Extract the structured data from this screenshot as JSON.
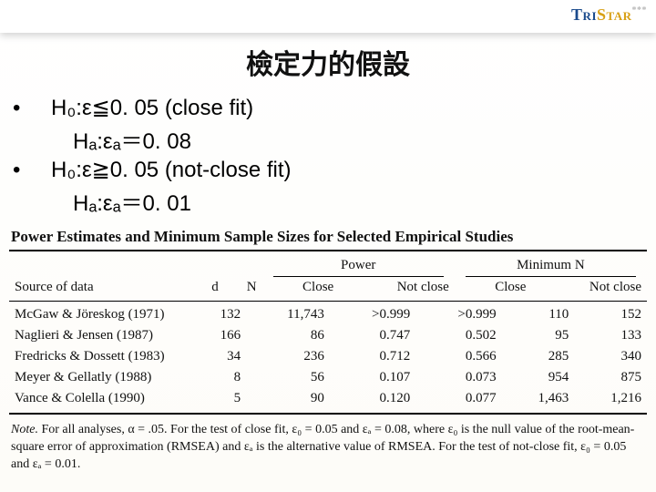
{
  "brand": {
    "part1": "Tri",
    "part2": "Star",
    "part3": "***"
  },
  "title": "檢定力的假設",
  "hypotheses": {
    "line1": "H₀:ε≦0. 05 (close fit)",
    "line2": "Hₐ:εₐ＝0. 08",
    "line3": "H₀:ε≧0. 05 (not-close fit)",
    "line4": "Hₐ:εₐ＝0. 01"
  },
  "table": {
    "title": "Power Estimates and Minimum Sample Sizes for Selected Empirical Studies",
    "group_headers": {
      "power": "Power",
      "minn": "Minimum N"
    },
    "headers": {
      "source": "Source of data",
      "d": "d",
      "n": "N",
      "close": "Close",
      "notclose": "Not close"
    },
    "rows": [
      {
        "source": "McGaw & Jöreskog (1971)",
        "d": "132",
        "n": "11,743",
        "p_close": ">0.999",
        "p_not": ">0.999",
        "m_close": "110",
        "m_not": "152"
      },
      {
        "source": "Naglieri & Jensen (1987)",
        "d": "166",
        "n": "86",
        "p_close": "0.747",
        "p_not": "0.502",
        "m_close": "95",
        "m_not": "133"
      },
      {
        "source": "Fredricks & Dossett (1983)",
        "d": "34",
        "n": "236",
        "p_close": "0.712",
        "p_not": "0.566",
        "m_close": "285",
        "m_not": "340"
      },
      {
        "source": "Meyer & Gellatly (1988)",
        "d": "8",
        "n": "56",
        "p_close": "0.107",
        "p_not": "0.073",
        "m_close": "954",
        "m_not": "875"
      },
      {
        "source": "Vance & Colella (1990)",
        "d": "5",
        "n": "90",
        "p_close": "0.120",
        "p_not": "0.077",
        "m_close": "1,463",
        "m_not": "1,216"
      }
    ],
    "note_label": "Note.",
    "note_body": "For all analyses, α = .05. For the test of close fit, ε₀ = 0.05 and εₐ = 0.08, where ε₀ is the null value of the root-mean-square error of approximation (RMSEA) and εₐ is the alternative value of RMSEA. For the test of not-close fit, ε₀ = 0.05 and εₐ = 0.01."
  }
}
